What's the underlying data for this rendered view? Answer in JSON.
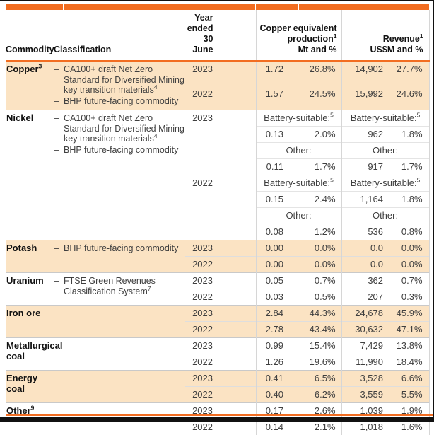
{
  "colors": {
    "accent": "#f26d21",
    "row_highlight": "#fbe3c3",
    "grid_line": "#d6d6d6",
    "page_edge": "#111111"
  },
  "header": {
    "commodity_label": "Commodity",
    "classification_label": "Classification",
    "year_line1": "Year",
    "year_line2": "ended",
    "year_line3": "30 June",
    "production_line1": "Copper equivalent",
    "production_line2": {
      "text": "production",
      "sup": "1"
    },
    "production_line3": "Mt and %",
    "revenue_line1": {
      "text": "Revenue",
      "sup": "1"
    },
    "revenue_line2": "US$M and %"
  },
  "groups": [
    {
      "commodity": {
        "lines": [
          "Copper"
        ],
        "sup": "3"
      },
      "highlight": true,
      "classification": [
        {
          "lines": [
            "CA100+ draft Net Zero",
            "Standard for Diversified Mining",
            "key transition materials"
          ],
          "sup": "4"
        },
        {
          "lines": [
            "BHP future-facing commodity"
          ],
          "sup": ""
        }
      ],
      "years": [
        {
          "year": "2023",
          "rows": [
            {
              "kind": "values",
              "mt": "1.72",
              "mt_pct": "26.8%",
              "rev": "14,902",
              "rev_pct": "27.7%"
            }
          ]
        },
        {
          "year": "2022",
          "rows": [
            {
              "kind": "values",
              "mt": "1.57",
              "mt_pct": "24.5%",
              "rev": "15,992",
              "rev_pct": "24.6%"
            }
          ]
        }
      ]
    },
    {
      "commodity": {
        "lines": [
          "Nickel"
        ],
        "sup": ""
      },
      "highlight": false,
      "classification": [
        {
          "lines": [
            "CA100+ draft Net Zero",
            "Standard for Diversified Mining",
            "key transition materials"
          ],
          "sup": "4"
        },
        {
          "lines": [
            "BHP future-facing commodity"
          ],
          "sup": ""
        }
      ],
      "years": [
        {
          "year": "2023",
          "rows": [
            {
              "kind": "label",
              "prod": {
                "text": "Battery-suitable:",
                "sup": "5"
              },
              "rev": {
                "text": "Battery-suitable:",
                "sup": "5"
              }
            },
            {
              "kind": "values",
              "mt": "0.13",
              "mt_pct": "2.0%",
              "rev": "962",
              "rev_pct": "1.8%"
            },
            {
              "kind": "label",
              "prod": {
                "text": "Other:",
                "sup": ""
              },
              "rev": {
                "text": "Other:",
                "sup": ""
              }
            },
            {
              "kind": "values",
              "mt": "0.11",
              "mt_pct": "1.7%",
              "rev": "917",
              "rev_pct": "1.7%"
            }
          ]
        },
        {
          "year": "2022",
          "rows": [
            {
              "kind": "label",
              "prod": {
                "text": "Battery-suitable:",
                "sup": "5"
              },
              "rev": {
                "text": "Battery-suitable:",
                "sup": "5"
              }
            },
            {
              "kind": "values",
              "mt": "0.15",
              "mt_pct": "2.4%",
              "rev": "1,164",
              "rev_pct": "1.8%"
            },
            {
              "kind": "label",
              "prod": {
                "text": "Other:",
                "sup": ""
              },
              "rev": {
                "text": "Other:",
                "sup": ""
              }
            },
            {
              "kind": "values",
              "mt": "0.08",
              "mt_pct": "1.2%",
              "rev": "536",
              "rev_pct": "0.8%"
            }
          ]
        }
      ]
    },
    {
      "commodity": {
        "lines": [
          "Potash"
        ],
        "sup": ""
      },
      "highlight": true,
      "classification": [
        {
          "lines": [
            "BHP future-facing commodity"
          ],
          "sup": ""
        }
      ],
      "years": [
        {
          "year": "2023",
          "rows": [
            {
              "kind": "values",
              "mt": "0.00",
              "mt_pct": "0.0%",
              "rev": "0.0",
              "rev_pct": "0.0%"
            }
          ]
        },
        {
          "year": "2022",
          "rows": [
            {
              "kind": "values",
              "mt": "0.00",
              "mt_pct": "0.0%",
              "rev": "0.0",
              "rev_pct": "0.0%"
            }
          ]
        }
      ]
    },
    {
      "commodity": {
        "lines": [
          "Uranium"
        ],
        "sup": ""
      },
      "highlight": false,
      "classification": [
        {
          "lines": [
            "FTSE Green Revenues",
            "Classification System"
          ],
          "sup": "7"
        }
      ],
      "years": [
        {
          "year": "2023",
          "rows": [
            {
              "kind": "values",
              "mt": "0.05",
              "mt_pct": "0.7%",
              "rev": "362",
              "rev_pct": "0.7%"
            }
          ]
        },
        {
          "year": "2022",
          "rows": [
            {
              "kind": "values",
              "mt": "0.03",
              "mt_pct": "0.5%",
              "rev": "207",
              "rev_pct": "0.3%"
            }
          ]
        }
      ]
    },
    {
      "commodity": {
        "lines": [
          "Iron ore"
        ],
        "sup": ""
      },
      "highlight": true,
      "classification": [],
      "years": [
        {
          "year": "2023",
          "rows": [
            {
              "kind": "values",
              "mt": "2.84",
              "mt_pct": "44.3%",
              "rev": "24,678",
              "rev_pct": "45.9%"
            }
          ]
        },
        {
          "year": "2022",
          "rows": [
            {
              "kind": "values",
              "mt": "2.78",
              "mt_pct": "43.4%",
              "rev": "30,632",
              "rev_pct": "47.1%"
            }
          ]
        }
      ]
    },
    {
      "commodity": {
        "lines": [
          "Metallurgical",
          "coal"
        ],
        "sup": ""
      },
      "highlight": false,
      "classification": [],
      "years": [
        {
          "year": "2023",
          "rows": [
            {
              "kind": "values",
              "mt": "0.99",
              "mt_pct": "15.4%",
              "rev": "7,429",
              "rev_pct": "13.8%"
            }
          ]
        },
        {
          "year": "2022",
          "rows": [
            {
              "kind": "values",
              "mt": "1.26",
              "mt_pct": "19.6%",
              "rev": "11,990",
              "rev_pct": "18.4%"
            }
          ]
        }
      ]
    },
    {
      "commodity": {
        "lines": [
          "Energy",
          "coal"
        ],
        "sup": ""
      },
      "highlight": true,
      "classification": [],
      "years": [
        {
          "year": "2023",
          "rows": [
            {
              "kind": "values",
              "mt": "0.41",
              "mt_pct": "6.5%",
              "rev": "3,528",
              "rev_pct": "6.6%"
            }
          ]
        },
        {
          "year": "2022",
          "rows": [
            {
              "kind": "values",
              "mt": "0.40",
              "mt_pct": "6.2%",
              "rev": "3,559",
              "rev_pct": "5.5%"
            }
          ]
        }
      ]
    },
    {
      "commodity": {
        "lines": [
          "Other"
        ],
        "sup": "9"
      },
      "highlight": false,
      "classification": [],
      "years": [
        {
          "year": "2023",
          "rows": [
            {
              "kind": "values",
              "mt": "0.17",
              "mt_pct": "2.6%",
              "rev": "1,039",
              "rev_pct": "1.9%"
            }
          ]
        },
        {
          "year": "2022",
          "rows": [
            {
              "kind": "values",
              "mt": "0.14",
              "mt_pct": "2.1%",
              "rev": "1,018",
              "rev_pct": "1.6%"
            }
          ]
        }
      ]
    }
  ]
}
